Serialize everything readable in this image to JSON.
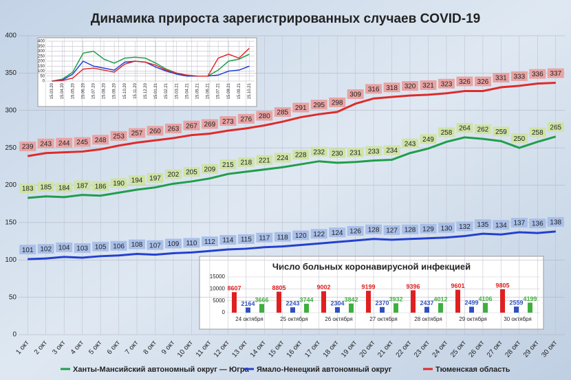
{
  "chart_data": [
    {
      "type": "line",
      "title": "Динамика прироста зарегистрированных случаев COVID-19",
      "categories": [
        "1 окт",
        "2 окт",
        "3 окт",
        "4 окт",
        "5 окт",
        "6 окт",
        "7 окт",
        "8 окт",
        "9 окт",
        "10 окт",
        "11 окт",
        "12 окт",
        "13 окт",
        "14 окт",
        "15 окт",
        "16 окт",
        "17 окт",
        "18 окт",
        "19 окт",
        "20 окт",
        "21 окт",
        "22 окт",
        "23 окт",
        "24 окт",
        "25 окт",
        "26 окт",
        "27 окт",
        "28 окт",
        "29 окт",
        "30 окт"
      ],
      "series": [
        {
          "name": "Ханты-Мансийский автономный округ — Югра",
          "color": "#1f9e4a",
          "label_color": "#cfe3a6",
          "values": [
            183,
            185,
            184,
            187,
            186,
            190,
            194,
            197,
            202,
            205,
            209,
            215,
            218,
            221,
            224,
            228,
            232,
            230,
            231,
            233,
            234,
            243,
            249,
            258,
            264,
            262,
            259,
            250,
            258,
            265
          ]
        },
        {
          "name": "Ямало-Ненецкий автономный округ",
          "color": "#2340d0",
          "label_color": "#a9bfe8",
          "values": [
            101,
            102,
            104,
            103,
            105,
            106,
            108,
            107,
            109,
            110,
            112,
            114,
            115,
            117,
            118,
            120,
            122,
            124,
            126,
            128,
            127,
            128,
            129,
            130,
            132,
            135,
            134,
            137,
            136,
            138
          ]
        },
        {
          "name": "Тюменская область",
          "color": "#e02a2a",
          "label_color": "#e8a3a3",
          "values": [
            239,
            243,
            244,
            245,
            248,
            253,
            257,
            260,
            263,
            267,
            269,
            273,
            276,
            280,
            285,
            291,
            295,
            298,
            309,
            316,
            318,
            320,
            321,
            323,
            326,
            326,
            331,
            333,
            336,
            337
          ]
        }
      ],
      "ylim": [
        0,
        400
      ],
      "yticks": [
        0,
        50,
        100,
        150,
        200,
        250,
        300,
        350,
        400
      ],
      "grid": true,
      "legend": "bottom"
    },
    {
      "type": "line",
      "categories": [
        "15.03.20",
        "15.04.20",
        "15.05.20",
        "15.06.20",
        "15.07.20",
        "15.08.20",
        "15.09.20",
        "15.10.20",
        "15.11.20",
        "15.12.20",
        "15.01.21",
        "15.02.21",
        "15.03.21",
        "15.04.21",
        "15.05.21",
        "15.06.21",
        "15.07.21",
        "15.08.21",
        "15.09.21",
        "15.10.21"
      ],
      "series": [
        {
          "color": "#1f9e4a",
          "values": [
            0,
            20,
            90,
            280,
            300,
            220,
            180,
            230,
            240,
            230,
            180,
            120,
            80,
            60,
            50,
            50,
            110,
            200,
            220,
            270
          ]
        },
        {
          "color": "#2340d0",
          "values": [
            0,
            10,
            70,
            200,
            150,
            130,
            110,
            190,
            200,
            190,
            140,
            100,
            70,
            50,
            50,
            50,
            60,
            100,
            110,
            150
          ]
        },
        {
          "color": "#e02a2a",
          "values": [
            0,
            5,
            30,
            120,
            130,
            110,
            90,
            170,
            200,
            190,
            160,
            110,
            80,
            60,
            50,
            50,
            230,
            270,
            230,
            330
          ]
        }
      ],
      "ylim": [
        0,
        400
      ],
      "yticks": [
        0,
        50,
        100,
        150,
        200,
        250,
        300,
        350,
        400
      ],
      "grid": true
    },
    {
      "type": "bar",
      "title": "Число больных коронавирусной инфекцией",
      "categories": [
        "24 октября",
        "25 октября",
        "26 октября",
        "27 октября",
        "28 октября",
        "29 октября",
        "30 октября"
      ],
      "series": [
        {
          "color": "#e02020",
          "values": [
            8607,
            8805,
            9002,
            9199,
            9396,
            9601,
            9805
          ]
        },
        {
          "color": "#3050c0",
          "values": [
            2164,
            2243,
            2304,
            2370,
            2437,
            2499,
            2559
          ]
        },
        {
          "color": "#3fae3f",
          "values": [
            3666,
            3744,
            3842,
            3932,
            4012,
            4106,
            4199
          ]
        }
      ],
      "ylim": [
        0,
        15000
      ],
      "yticks": [
        0,
        5000,
        10000,
        15000
      ],
      "grid": true
    }
  ]
}
